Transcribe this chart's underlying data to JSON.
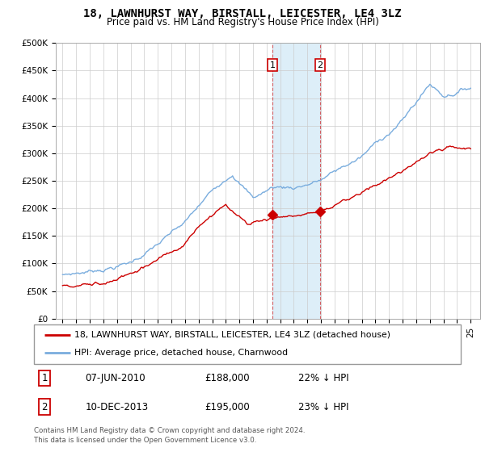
{
  "title": "18, LAWNHURST WAY, BIRSTALL, LEICESTER, LE4 3LZ",
  "subtitle": "Price paid vs. HM Land Registry's House Price Index (HPI)",
  "ylim": [
    0,
    500000
  ],
  "yticks": [
    0,
    50000,
    100000,
    150000,
    200000,
    250000,
    300000,
    350000,
    400000,
    450000,
    500000
  ],
  "ytick_labels": [
    "£0",
    "£50K",
    "£100K",
    "£150K",
    "£200K",
    "£250K",
    "£300K",
    "£350K",
    "£400K",
    "£450K",
    "£500K"
  ],
  "point1_year": 2010.44,
  "point1_value": 188000,
  "point1_label": "1",
  "point1_date_str": "07-JUN-2010",
  "point1_price_str": "£188,000",
  "point1_pct": "22% ↓ HPI",
  "point2_year": 2013.94,
  "point2_value": 195000,
  "point2_label": "2",
  "point2_date_str": "10-DEC-2013",
  "point2_price_str": "£195,000",
  "point2_pct": "23% ↓ HPI",
  "legend_property": "18, LAWNHURST WAY, BIRSTALL, LEICESTER, LE4 3LZ (detached house)",
  "legend_hpi": "HPI: Average price, detached house, Charnwood",
  "footer": "Contains HM Land Registry data © Crown copyright and database right 2024.\nThis data is licensed under the Open Government Licence v3.0.",
  "property_color": "#cc0000",
  "hpi_color": "#7aadde",
  "highlight_color": "#ddeef8",
  "grid_color": "#cccccc",
  "title_fontsize": 10,
  "subtitle_fontsize": 8.5
}
